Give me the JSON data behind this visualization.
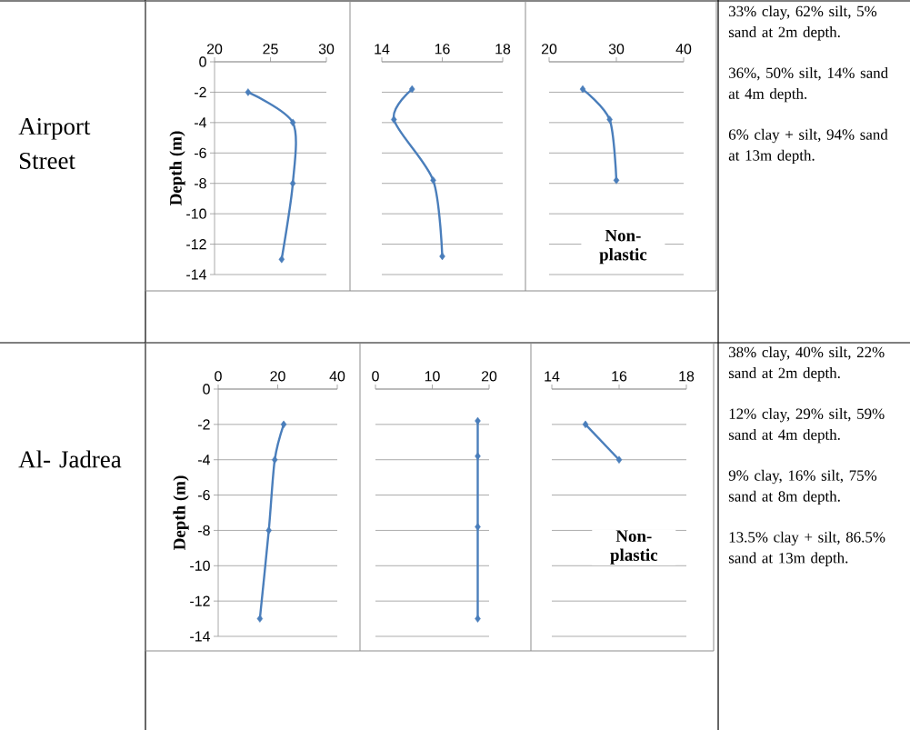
{
  "chart_data": [
    {
      "type": "other",
      "title": "Airport Street"
    },
    {
      "type": "line",
      "ylabel": "Depth (m)",
      "xlim": [
        20,
        30
      ],
      "xticks": [
        20,
        25,
        30
      ],
      "ylim": [
        -14,
        0
      ],
      "yticks": [
        -14,
        -12,
        -10,
        -8,
        -6,
        -4,
        -2,
        0
      ],
      "grid": "y",
      "marker": "diamond",
      "series": [
        {
          "color": "#4a7ebb",
          "x": [
            23,
            27,
            27,
            26
          ],
          "values": [
            -2,
            -4,
            -8,
            -13
          ]
        }
      ]
    },
    {
      "type": "line",
      "xlim": [
        14,
        18
      ],
      "xticks": [
        14,
        16,
        18
      ],
      "ylim": [
        -14,
        0
      ],
      "yticks": [
        -14,
        -12,
        -10,
        -8,
        -6,
        -4,
        -2,
        0
      ],
      "tick_labels": "x",
      "grid": "y",
      "marker": "diamond",
      "series": [
        {
          "color": "#4a7ebb",
          "x": [
            15,
            14.4,
            15.7,
            16
          ],
          "values": [
            -1.8,
            -3.8,
            -7.8,
            -12.8
          ]
        }
      ]
    },
    {
      "type": "line",
      "xlim": [
        20,
        40
      ],
      "xticks": [
        20,
        30,
        40
      ],
      "ylim": [
        -14,
        0
      ],
      "yticks": [
        -14,
        -12,
        -10,
        -8,
        -6,
        -4,
        -2,
        0
      ],
      "tick_labels": "x",
      "grid": "y",
      "marker": "diamond",
      "annotations": [
        "Non-plastic"
      ],
      "series": [
        {
          "color": "#4a7ebb",
          "x": [
            25,
            29,
            30
          ],
          "values": [
            -1.8,
            -3.8,
            -7.8
          ]
        }
      ]
    },
    {
      "type": "other",
      "annotations": [
        "33% clay, 62% silt, 5% sand at 2m depth.",
        "36%, 50% silt, 14% sand at 4m depth.",
        "6% clay + silt, 94% sand at 13m depth."
      ]
    },
    {
      "type": "other",
      "title": "Al- Jadrea"
    },
    {
      "type": "line",
      "ylabel": "Depth (m)",
      "xlim": [
        0,
        40
      ],
      "xticks": [
        0,
        20,
        40
      ],
      "ylim": [
        -14,
        0
      ],
      "yticks": [
        -14,
        -12,
        -10,
        -8,
        -6,
        -4,
        -2,
        0
      ],
      "grid": "y",
      "marker": "diamond",
      "series": [
        {
          "color": "#4a7ebb",
          "x": [
            22,
            19,
            17,
            14
          ],
          "values": [
            -2,
            -4,
            -8,
            -13
          ]
        }
      ]
    },
    {
      "type": "line",
      "xlim": [
        0,
        20
      ],
      "xticks": [
        0,
        10,
        20
      ],
      "ylim": [
        -14,
        0
      ],
      "yticks": [
        -14,
        -12,
        -10,
        -8,
        -6,
        -4,
        -2,
        0
      ],
      "tick_labels": "x",
      "grid": "y",
      "marker": "diamond",
      "series": [
        {
          "color": "#4a7ebb",
          "x": [
            18,
            18,
            18,
            18
          ],
          "values": [
            -1.8,
            -3.8,
            -7.8,
            -13
          ]
        }
      ]
    },
    {
      "type": "line",
      "xlim": [
        14,
        18
      ],
      "xticks": [
        14,
        16,
        18
      ],
      "ylim": [
        -14,
        0
      ],
      "yticks": [
        -14,
        -12,
        -10,
        -8,
        -6,
        -4,
        -2,
        0
      ],
      "tick_labels": "x",
      "grid": "y",
      "marker": "diamond",
      "annotations": [
        "Non-plastic"
      ],
      "series": [
        {
          "color": "#4a7ebb",
          "x": [
            15,
            16
          ],
          "values": [
            -2,
            -4
          ]
        }
      ]
    },
    {
      "type": "other",
      "annotations": [
        "38% clay, 40% silt, 22% sand at 2m depth.",
        "12% clay, 29% silt, 59% sand  at 4m depth.",
        "9% clay, 16% silt, 75% sand at 8m depth.",
        "13.5% clay + silt, 86.5% sand at 13m depth."
      ]
    }
  ]
}
